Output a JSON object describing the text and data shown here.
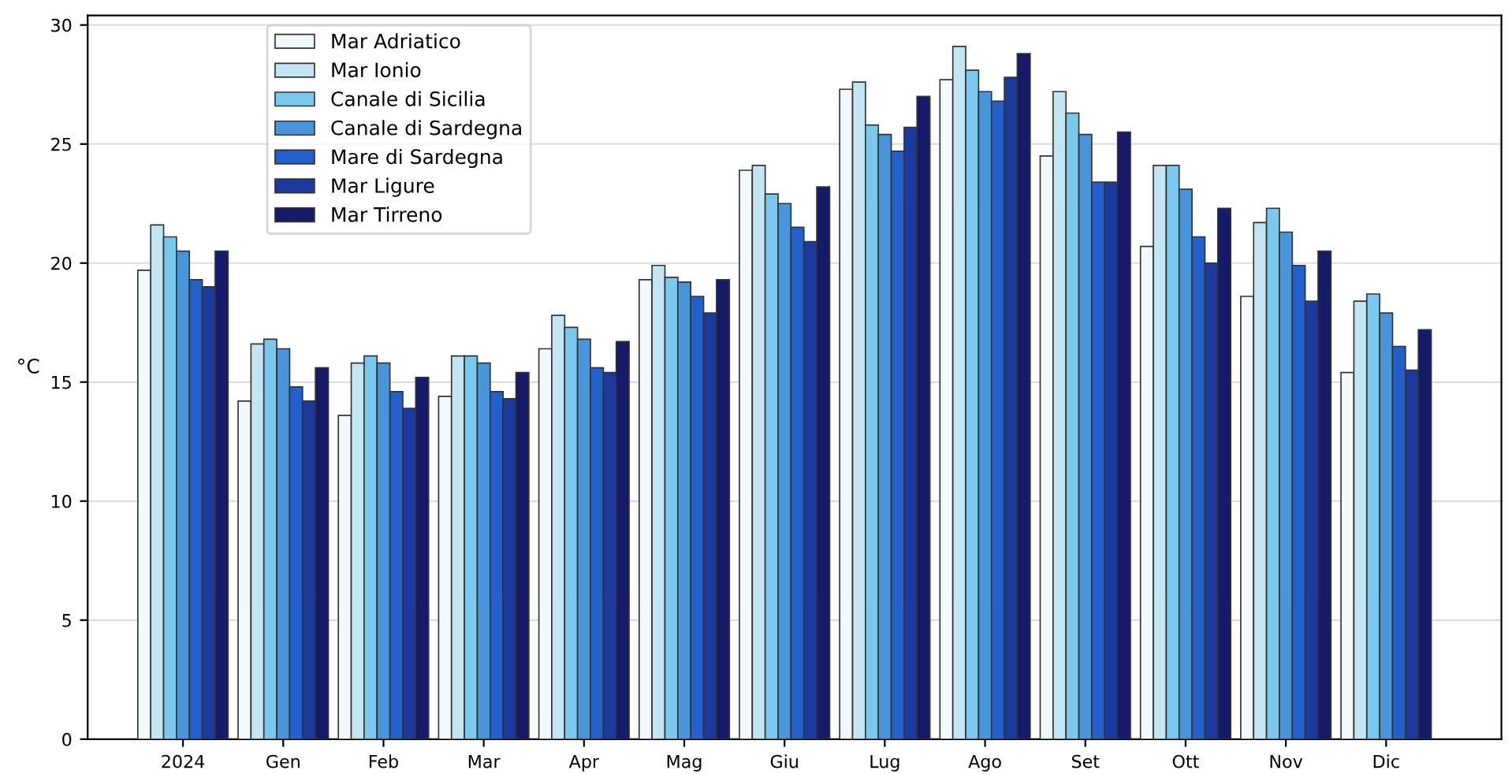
{
  "chart_data": {
    "type": "bar",
    "ylabel": "°C",
    "categories": [
      "2024",
      "Gen",
      "Feb",
      "Mar",
      "Apr",
      "Mag",
      "Giu",
      "Lug",
      "Ago",
      "Set",
      "Ott",
      "Nov",
      "Dic"
    ],
    "series": [
      {
        "name": "Mar Adriatico",
        "color": "#f2f9fc",
        "values": [
          19.7,
          14.2,
          13.6,
          14.4,
          16.4,
          19.3,
          23.9,
          27.3,
          27.7,
          24.5,
          20.7,
          18.6,
          15.4
        ]
      },
      {
        "name": "Mar Ionio",
        "color": "#c4e6f2",
        "values": [
          21.6,
          16.6,
          15.8,
          16.1,
          17.8,
          19.9,
          24.1,
          27.6,
          29.1,
          27.2,
          24.1,
          21.7,
          18.4
        ]
      },
      {
        "name": "Canale di Sicilia",
        "color": "#7ac8ee",
        "values": [
          21.1,
          16.8,
          16.1,
          16.1,
          17.3,
          19.4,
          22.9,
          25.8,
          28.1,
          26.3,
          24.1,
          22.3,
          18.7
        ]
      },
      {
        "name": "Canale di Sardegna",
        "color": "#4895db",
        "values": [
          20.5,
          16.4,
          15.8,
          15.8,
          16.8,
          19.2,
          22.5,
          25.4,
          27.2,
          25.4,
          23.1,
          21.3,
          17.9
        ]
      },
      {
        "name": "Mare di Sardegna",
        "color": "#2460cc",
        "values": [
          19.3,
          14.8,
          14.6,
          14.6,
          15.6,
          18.6,
          21.5,
          24.7,
          26.8,
          23.4,
          21.1,
          19.9,
          16.5
        ]
      },
      {
        "name": "Mar Ligure",
        "color": "#1c3a9e",
        "values": [
          19.0,
          14.2,
          13.9,
          14.3,
          15.4,
          17.9,
          20.9,
          25.7,
          27.8,
          23.4,
          20.0,
          18.4,
          15.5
        ]
      },
      {
        "name": "Mar Tirreno",
        "color": "#151b68",
        "values": [
          20.5,
          15.6,
          15.2,
          15.4,
          16.7,
          19.3,
          23.2,
          27.0,
          28.8,
          25.5,
          22.3,
          20.5,
          17.2
        ]
      }
    ],
    "ylim": [
      0,
      30.4
    ],
    "yticks": [
      0,
      5,
      10,
      15,
      20,
      25,
      30
    ],
    "grid": "y",
    "legend": "top left"
  }
}
